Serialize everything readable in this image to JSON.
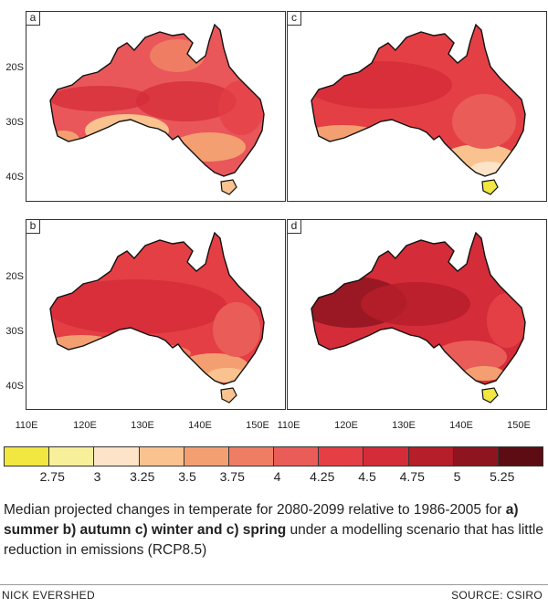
{
  "panels": [
    {
      "letter": "a"
    },
    {
      "letter": "c"
    },
    {
      "letter": "b"
    },
    {
      "letter": "d"
    }
  ],
  "latitude_labels": [
    "20S",
    "30S",
    "40S"
  ],
  "longitude_labels": [
    "110E",
    "120E",
    "130E",
    "140E",
    "150E"
  ],
  "legend": {
    "colors": [
      "#f2e640",
      "#f8ef9a",
      "#fde3c8",
      "#f9c28f",
      "#f49f72",
      "#ef7d64",
      "#ea5c58",
      "#e43f45",
      "#d42c38",
      "#b61e2a",
      "#8e1520",
      "#5c0c12"
    ],
    "labels": [
      "2.75",
      "3",
      "3.25",
      "3.5",
      "3.75",
      "4",
      "4.25",
      "4.5",
      "4.75",
      "5",
      "5.25"
    ]
  },
  "caption": {
    "pre": "Median projected changes in temperate for 2080-2099 relative to 1986-2005 for ",
    "bold": "a) summer b) autumn c) winter and c) spring",
    "post": " under a modelling scenario that has little reduction in emissions (RCP8.5)"
  },
  "credits": {
    "author": "NICK EVERSHED",
    "source": "SOURCE: CSIRO"
  }
}
